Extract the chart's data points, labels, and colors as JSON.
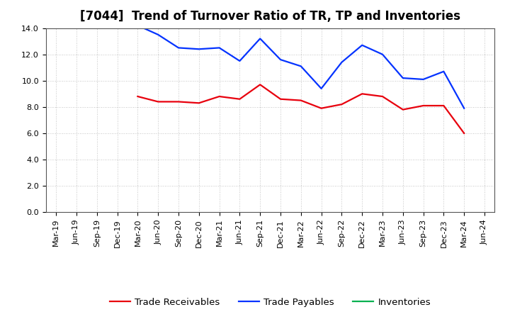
{
  "title": "[7044]  Trend of Turnover Ratio of TR, TP and Inventories",
  "labels": [
    "Mar-19",
    "Jun-19",
    "Sep-19",
    "Dec-19",
    "Mar-20",
    "Jun-20",
    "Sep-20",
    "Dec-20",
    "Mar-21",
    "Jun-21",
    "Sep-21",
    "Dec-21",
    "Mar-22",
    "Jun-22",
    "Sep-22",
    "Dec-22",
    "Mar-23",
    "Jun-23",
    "Sep-23",
    "Dec-23",
    "Mar-24",
    "Jun-24"
  ],
  "trade_receivables": [
    null,
    null,
    null,
    null,
    8.8,
    8.4,
    8.4,
    8.3,
    8.8,
    8.6,
    9.7,
    8.6,
    8.5,
    7.9,
    8.2,
    9.0,
    8.8,
    7.8,
    8.1,
    8.1,
    6.0,
    null
  ],
  "trade_payables": [
    null,
    null,
    null,
    null,
    14.2,
    13.5,
    12.5,
    12.4,
    12.5,
    11.5,
    13.2,
    11.6,
    11.1,
    9.4,
    11.4,
    12.7,
    12.0,
    10.2,
    10.1,
    10.7,
    7.9,
    null
  ],
  "inventories": [
    null,
    null,
    null,
    null,
    null,
    null,
    null,
    null,
    null,
    null,
    null,
    null,
    null,
    null,
    null,
    null,
    null,
    null,
    null,
    null,
    null,
    null
  ],
  "tr_color": "#e8000d",
  "tp_color": "#0433ff",
  "inv_color": "#00b050",
  "ylim": [
    0.0,
    14.0
  ],
  "yticks": [
    0.0,
    2.0,
    4.0,
    6.0,
    8.0,
    10.0,
    12.0,
    14.0
  ],
  "legend_labels": [
    "Trade Receivables",
    "Trade Payables",
    "Inventories"
  ],
  "background_color": "#ffffff",
  "grid_color": "#aaaaaa",
  "title_fontsize": 12,
  "tick_fontsize": 8,
  "legend_fontsize": 9.5,
  "line_width": 1.6
}
